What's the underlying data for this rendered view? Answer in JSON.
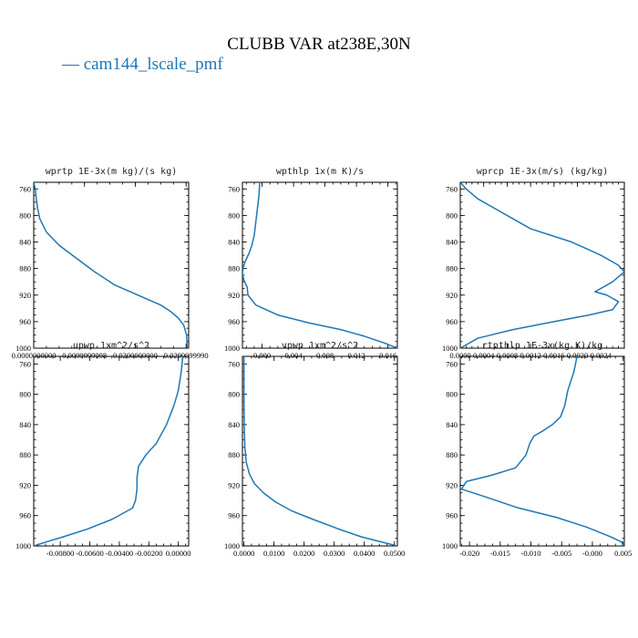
{
  "title": "CLUBB VAR at238E,30N",
  "legend": {
    "entries": [
      "— cam144_lscale_pmf"
    ],
    "color": "#1f77b4"
  },
  "chart_data": [
    {
      "type": "line",
      "title": "wprtp  1E-3x(m kg)/(s kg)",
      "xlim": [
        0,
        0.0305
      ],
      "xticks": [
        0.0,
        0.01,
        0.02,
        0.03
      ],
      "xtick_labels": [
        "0.0000000000",
        "0.0099999998",
        "0.0200000000",
        "0.0299999990"
      ],
      "ylim": [
        1000,
        750
      ],
      "yticks": [
        760,
        800,
        840,
        880,
        920,
        960,
        1000
      ],
      "series": [
        {
          "x": [
            0.0,
            0.0003,
            0.0005,
            0.0008,
            0.0012,
            0.0025,
            0.005,
            0.0085,
            0.012,
            0.016,
            0.019,
            0.022,
            0.025,
            0.027,
            0.0285,
            0.0295,
            0.0301,
            0.0302
          ],
          "y": [
            750,
            760,
            775,
            790,
            805,
            825,
            845,
            865,
            885,
            905,
            915,
            925,
            935,
            945,
            955,
            965,
            980,
            1000
          ]
        }
      ]
    },
    {
      "type": "line",
      "title": "wpthlp  1x(m K)/s",
      "xlim": [
        -0.0025,
        0.0172
      ],
      "xticks": [
        0.0,
        0.004,
        0.008,
        0.012,
        0.016
      ],
      "xtick_labels": [
        "0.000",
        "0.004",
        "0.008",
        "0.012",
        "0.016"
      ],
      "ylim": [
        1000,
        750
      ],
      "yticks": [
        760,
        800,
        840,
        880,
        920,
        960,
        1000
      ],
      "series": [
        {
          "x": [
            -0.0003,
            -0.0004,
            -0.0006,
            -0.0008,
            -0.001,
            -0.0013,
            -0.0017,
            -0.0021,
            -0.0024,
            -0.0025,
            -0.0023,
            -0.0019,
            -0.0018,
            -0.0008,
            0.002,
            0.006,
            0.01,
            0.013,
            0.0155,
            0.0172
          ],
          "y": [
            750,
            770,
            790,
            810,
            830,
            845,
            858,
            868,
            878,
            888,
            898,
            908,
            920,
            935,
            950,
            962,
            972,
            982,
            992,
            1000
          ]
        }
      ]
    },
    {
      "type": "line",
      "title": "wprcp  1E-3x(m/s) (kg/kg)",
      "xlim": [
        0,
        0.0028
      ],
      "xticks": [
        0.0,
        0.0004,
        0.0008,
        0.0012,
        0.0016,
        0.002,
        0.0024
      ],
      "xtick_labels": [
        "0.0000",
        "0.0004",
        "0.0008",
        "0.0012",
        "0.0016",
        "0.0020",
        "0.0024"
      ],
      "ylim": [
        1000,
        750
      ],
      "yticks": [
        760,
        800,
        840,
        880,
        920,
        960,
        1000
      ],
      "series": [
        {
          "x": [
            0.0,
            0.0001,
            0.0003,
            0.0006,
            0.0009,
            0.0012,
            0.0019,
            0.0024,
            0.0027,
            0.0028,
            0.0026,
            0.0023,
            0.0025,
            0.0027,
            0.0026,
            0.0022,
            0.0016,
            0.0009,
            0.0003,
            0.0001,
            0.0
          ],
          "y": [
            750,
            760,
            775,
            790,
            805,
            820,
            840,
            860,
            875,
            885,
            900,
            915,
            920,
            930,
            942,
            950,
            960,
            972,
            985,
            995,
            1000
          ]
        }
      ]
    },
    {
      "type": "line",
      "title": "upwp  1xm^2/s^2",
      "xlim": [
        -0.0098,
        0.0007
      ],
      "xticks": [
        -0.008,
        -0.006,
        -0.004,
        -0.002,
        0.0
      ],
      "xtick_labels": [
        "-0.00800",
        "-0.00600",
        "-0.00400",
        "-0.00200",
        "0.00000"
      ],
      "ylim": [
        1000,
        750
      ],
      "yticks": [
        760,
        800,
        840,
        880,
        920,
        960,
        1000
      ],
      "series": [
        {
          "x": [
            0.0003,
            0.0002,
            0.0,
            -0.0003,
            -0.0008,
            -0.0015,
            -0.0022,
            -0.0027,
            -0.0028,
            -0.0028,
            -0.0029,
            -0.0031,
            -0.0045,
            -0.0062,
            -0.0078,
            -0.009,
            -0.0098
          ],
          "y": [
            750,
            770,
            795,
            815,
            840,
            865,
            880,
            895,
            910,
            925,
            940,
            950,
            965,
            978,
            988,
            995,
            1000
          ]
        }
      ]
    },
    {
      "type": "line",
      "title": "vpwp  1xm^2/s^2",
      "xlim": [
        -0.0005,
        0.051
      ],
      "xticks": [
        0.0,
        0.01,
        0.02,
        0.03,
        0.04,
        0.05
      ],
      "xtick_labels": [
        "0.0000",
        "0.0100",
        "0.0200",
        "0.0300",
        "0.0400",
        "0.0500"
      ],
      "ylim": [
        1000,
        750
      ],
      "yticks": [
        760,
        800,
        840,
        880,
        920,
        960,
        1000
      ],
      "series": [
        {
          "x": [
            0.0,
            0.0,
            0.0001,
            0.0003,
            0.0008,
            0.0018,
            0.0035,
            0.0065,
            0.0105,
            0.016,
            0.023,
            0.031,
            0.039,
            0.046,
            0.051
          ],
          "y": [
            750,
            800,
            840,
            870,
            890,
            905,
            918,
            930,
            942,
            954,
            965,
            977,
            988,
            995,
            1000
          ]
        }
      ]
    },
    {
      "type": "line",
      "title": "rtpthlp  1E-3x(kg K)/kg",
      "xlim": [
        -0.0215,
        0.0052
      ],
      "xticks": [
        -0.02,
        -0.015,
        -0.01,
        -0.005,
        0.0,
        0.005
      ],
      "xtick_labels": [
        "-0.020",
        "-0.015",
        "-0.010",
        "-0.005",
        "-0.000",
        "0.005"
      ],
      "ylim": [
        1000,
        750
      ],
      "yticks": [
        760,
        800,
        840,
        880,
        920,
        960,
        1000
      ],
      "series": [
        {
          "x": [
            -0.0025,
            -0.003,
            -0.004,
            -0.0045,
            -0.0052,
            -0.0065,
            -0.008,
            -0.0095,
            -0.0102,
            -0.0108,
            -0.0125,
            -0.0165,
            -0.0205,
            -0.0213,
            -0.0175,
            -0.012,
            -0.006,
            -0.001,
            0.003,
            0.0048,
            0.005
          ],
          "y": [
            750,
            770,
            795,
            815,
            830,
            840,
            848,
            855,
            865,
            880,
            897,
            907,
            915,
            925,
            935,
            950,
            962,
            975,
            988,
            995,
            1000
          ]
        }
      ]
    }
  ]
}
